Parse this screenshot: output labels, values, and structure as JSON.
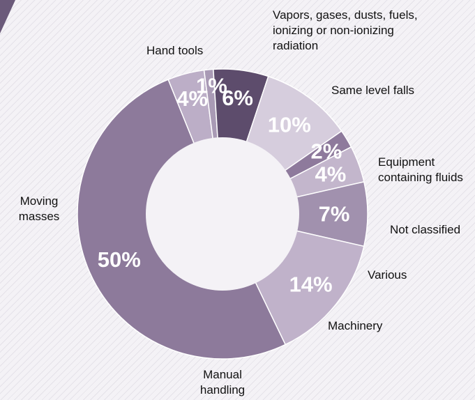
{
  "chart_data": {
    "type": "pie",
    "title": "",
    "categories": [
      {
        "label_lines": [
          "Hand tools"
        ],
        "value": 4,
        "value_label": "4%",
        "color": "#bcaec7",
        "text_color": "#ffffff"
      },
      {
        "label_lines": [
          "Vapors, gases, dusts, fuels,",
          "ionizing or non-ionizing",
          "radiation"
        ],
        "value": 1,
        "value_label": "1%",
        "color": "#a99ab5",
        "text_color": "#ffffff"
      },
      {
        "label_lines": [
          "Same level falls"
        ],
        "value": 6,
        "value_label": "6%",
        "color": "#5d4c6c",
        "text_color": "#ffffff"
      },
      {
        "label_lines": [
          "Equipment",
          "containing fluids"
        ],
        "value": 10,
        "value_label": "10%",
        "color": "#d6cddd",
        "text_color": "#ffffff"
      },
      {
        "label_lines": [
          "Not classified"
        ],
        "value": 2,
        "value_label": "2%",
        "color": "#8e7a9c",
        "text_color": "#ffffff"
      },
      {
        "label_lines": [
          "Various"
        ],
        "value": 4,
        "value_label": "4%",
        "color": "#c3b6cc",
        "text_color": "#ffffff"
      },
      {
        "label_lines": [
          "Machinery"
        ],
        "value": 7,
        "value_label": "7%",
        "color": "#a191ae",
        "text_color": "#ffffff"
      },
      {
        "label_lines": [
          "Manual",
          "handling"
        ],
        "value": 14,
        "value_label": "14%",
        "color": "#c0b2ca",
        "text_color": "#ffffff"
      },
      {
        "label_lines": [
          "Moving",
          "masses"
        ],
        "value": 50,
        "value_label": "50%",
        "color": "#8d7a9b",
        "text_color": "#ffffff"
      }
    ],
    "center_color": "#f4f2f6",
    "accent_color": "#6b5a7a",
    "legend": "none (direct labels)"
  }
}
